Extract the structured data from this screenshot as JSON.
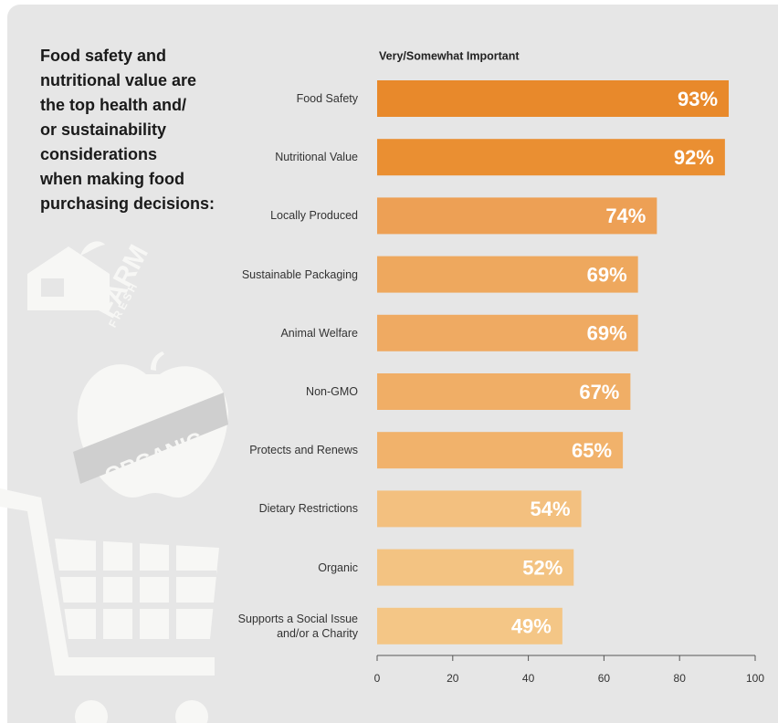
{
  "chart_data": {
    "type": "bar",
    "orientation": "horizontal",
    "title_lines": [
      "Food safety and",
      "nutritional value are",
      "the top health and/",
      "or sustainability",
      "considerations",
      "when making food",
      "purchasing decisions:"
    ],
    "subtitle": "Very/Somewhat Important",
    "categories": [
      "Food Safety",
      "Nutritional Value",
      "Locally Produced",
      "Sustainable Packaging",
      "Animal Welfare",
      "Non-GMO",
      "Protects and Renews",
      "Dietary Restrictions",
      "Organic",
      "Supports a Social Issue and/or a Charity"
    ],
    "values": [
      93,
      92,
      74,
      69,
      69,
      67,
      65,
      54,
      52,
      49
    ],
    "value_labels": [
      "93%",
      "92%",
      "74%",
      "69%",
      "69%",
      "67%",
      "65%",
      "54%",
      "52%",
      "49%"
    ],
    "colors": [
      "#e8892b",
      "#ea8f32",
      "#eda055",
      "#eea85e",
      "#efaa62",
      "#f0ae66",
      "#f1b26b",
      "#f3c07f",
      "#f3c382",
      "#f4c686"
    ],
    "xlim": [
      0,
      100
    ],
    "xticks": [
      0,
      20,
      40,
      60,
      80,
      100
    ],
    "decorations": [
      "FARM",
      "FRESH",
      "ORGANIC"
    ]
  }
}
